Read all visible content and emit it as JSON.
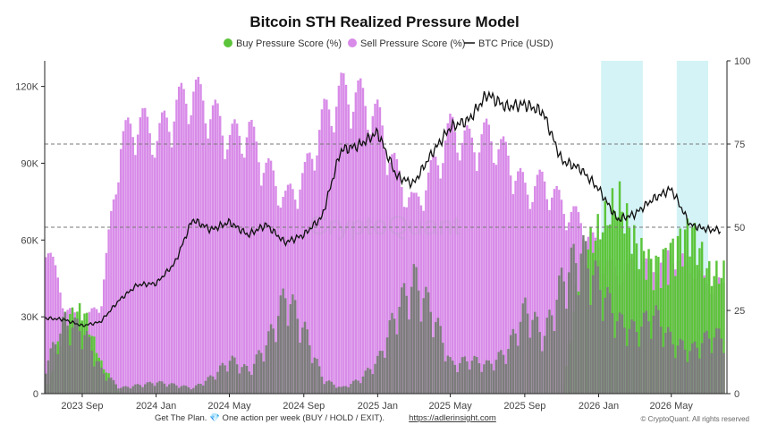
{
  "chart_data": {
    "type": "bar",
    "title": "Bitcoin STH Realized Pressure Model",
    "legend": {
      "placement": "top-center",
      "items": [
        {
          "label": "Buy Pressure Score (%)",
          "color": "#5cc43a",
          "marker": "dot"
        },
        {
          "label": "Sell Pressure Score (%)",
          "color": "#d88be8",
          "marker": "dot"
        },
        {
          "label": "BTC Price (USD)",
          "color": "#111111",
          "marker": "line"
        }
      ]
    },
    "x_ticks": [
      "2023 Sep",
      "2024 Jan",
      "2024 May",
      "2024 Sep",
      "2025 Jan",
      "2025 May",
      "2025 Sep",
      "2026 Jan",
      "2026 May"
    ],
    "x_range": [
      "2023-07",
      "2026-08"
    ],
    "left_axis": {
      "ticks": [
        "0",
        "30K",
        "60K",
        "90K",
        "120K"
      ],
      "range": [
        0,
        130000
      ]
    },
    "right_axis": {
      "ticks": [
        "0",
        "25",
        "50",
        "75",
        "100"
      ],
      "range": [
        0,
        100
      ]
    },
    "reference_lines": [
      50,
      75
    ],
    "highlight_periods": [
      [
        "2026-01-05",
        "2026-03-15"
      ],
      [
        "2026-05-10",
        "2026-07-01"
      ]
    ],
    "grid": false,
    "series": [
      {
        "name": "Sell Pressure Score (%)",
        "color": "#d88be8",
        "points": [
          [
            "2023-07",
            50
          ],
          [
            "2023-08",
            28
          ],
          [
            "2023-09",
            22
          ],
          [
            "2023-10",
            30
          ],
          [
            "2023-11",
            80
          ],
          [
            "2023-12",
            88
          ],
          [
            "2024-01",
            82
          ],
          [
            "2024-02",
            92
          ],
          [
            "2024-03",
            97
          ],
          [
            "2024-04",
            90
          ],
          [
            "2024-05",
            82
          ],
          [
            "2024-06",
            84
          ],
          [
            "2024-07",
            72
          ],
          [
            "2024-08",
            62
          ],
          [
            "2024-09",
            70
          ],
          [
            "2024-10",
            88
          ],
          [
            "2024-11",
            97
          ],
          [
            "2024-12",
            95
          ],
          [
            "2025-01",
            88
          ],
          [
            "2025-02",
            70
          ],
          [
            "2025-03",
            60
          ],
          [
            "2025-04",
            72
          ],
          [
            "2025-05",
            85
          ],
          [
            "2025-06",
            80
          ],
          [
            "2025-07",
            83
          ],
          [
            "2025-08",
            76
          ],
          [
            "2025-09",
            65
          ],
          [
            "2025-10",
            68
          ],
          [
            "2025-11",
            60
          ],
          [
            "2025-12",
            55
          ],
          [
            "2026-01",
            45
          ],
          [
            "2026-02",
            38
          ],
          [
            "2026-03",
            42
          ],
          [
            "2026-04",
            40
          ],
          [
            "2026-05",
            45
          ],
          [
            "2026-06",
            40
          ],
          [
            "2026-07",
            35
          ]
        ]
      },
      {
        "name": "Buy Pressure Score (%)",
        "color": "#5cc43a",
        "points": [
          [
            "2023-07",
            0
          ],
          [
            "2023-08",
            25
          ],
          [
            "2023-09",
            28
          ],
          [
            "2023-10",
            10
          ],
          [
            "2023-11",
            0
          ],
          [
            "2024-01",
            0
          ],
          [
            "2024-12",
            0
          ],
          [
            "2025-11",
            0
          ],
          [
            "2025-12",
            45
          ],
          [
            "2026-01",
            55
          ],
          [
            "2026-02",
            65
          ],
          [
            "2026-03",
            50
          ],
          [
            "2026-04",
            42
          ],
          [
            "2026-05",
            48
          ],
          [
            "2026-06",
            55
          ],
          [
            "2026-07",
            40
          ]
        ]
      },
      {
        "name": "Sell Pressure Score (%) overlap",
        "color": "#7c7c7c",
        "points": [
          [
            "2023-07",
            10
          ],
          [
            "2023-08",
            25
          ],
          [
            "2023-09",
            22
          ],
          [
            "2023-10",
            8
          ],
          [
            "2023-11",
            2
          ],
          [
            "2023-12",
            3
          ],
          [
            "2024-01",
            4
          ],
          [
            "2024-02",
            3
          ],
          [
            "2024-03",
            2
          ],
          [
            "2024-04",
            6
          ],
          [
            "2024-05",
            12
          ],
          [
            "2024-06",
            8
          ],
          [
            "2024-07",
            18
          ],
          [
            "2024-08",
            35
          ],
          [
            "2024-09",
            22
          ],
          [
            "2024-10",
            5
          ],
          [
            "2024-11",
            2
          ],
          [
            "2024-12",
            5
          ],
          [
            "2025-01",
            12
          ],
          [
            "2025-02",
            30
          ],
          [
            "2025-03",
            40
          ],
          [
            "2025-04",
            28
          ],
          [
            "2025-05",
            10
          ],
          [
            "2025-06",
            12
          ],
          [
            "2025-07",
            10
          ],
          [
            "2025-08",
            15
          ],
          [
            "2025-09",
            30
          ],
          [
            "2025-10",
            20
          ],
          [
            "2025-11",
            40
          ],
          [
            "2025-12",
            50
          ],
          [
            "2026-01",
            38
          ],
          [
            "2026-02",
            25
          ],
          [
            "2026-03",
            22
          ],
          [
            "2026-04",
            28
          ],
          [
            "2026-05",
            18
          ],
          [
            "2026-06",
            15
          ],
          [
            "2026-07",
            20
          ]
        ]
      },
      {
        "name": "BTC Price (USD)",
        "color": "#111111",
        "type": "line",
        "axis": "left",
        "points": [
          [
            "2023-07",
            29500
          ],
          [
            "2023-08",
            29000
          ],
          [
            "2023-09",
            26500
          ],
          [
            "2023-10",
            28000
          ],
          [
            "2023-11",
            36500
          ],
          [
            "2023-12",
            42500
          ],
          [
            "2024-01",
            43000
          ],
          [
            "2024-02",
            51000
          ],
          [
            "2024-03",
            68000
          ],
          [
            "2024-04",
            64000
          ],
          [
            "2024-05",
            67000
          ],
          [
            "2024-06",
            62000
          ],
          [
            "2024-07",
            66000
          ],
          [
            "2024-08",
            59000
          ],
          [
            "2024-09",
            62000
          ],
          [
            "2024-10",
            69000
          ],
          [
            "2024-11",
            95000
          ],
          [
            "2024-12",
            97000
          ],
          [
            "2025-01",
            102000
          ],
          [
            "2025-02",
            85000
          ],
          [
            "2025-03",
            82000
          ],
          [
            "2025-04",
            94000
          ],
          [
            "2025-05",
            104000
          ],
          [
            "2025-06",
            107000
          ],
          [
            "2025-07",
            117000
          ],
          [
            "2025-08",
            112000
          ],
          [
            "2025-09",
            113000
          ],
          [
            "2025-10",
            110000
          ],
          [
            "2025-11",
            91000
          ],
          [
            "2025-12",
            88000
          ],
          [
            "2026-01",
            80000
          ],
          [
            "2026-02",
            68000
          ],
          [
            "2026-03",
            70000
          ],
          [
            "2026-04",
            76000
          ],
          [
            "2026-05",
            80000
          ],
          [
            "2026-06",
            66000
          ],
          [
            "2026-07",
            64000
          ]
        ]
      }
    ]
  },
  "watermark": "CryptoQuant",
  "footer": {
    "text": "Get The Plan. 💎 One action per week (BUY / HOLD / EXIT).",
    "link": "https://adlerinsight.com",
    "copyright": "© CryptoQuant. All rights reserved"
  }
}
